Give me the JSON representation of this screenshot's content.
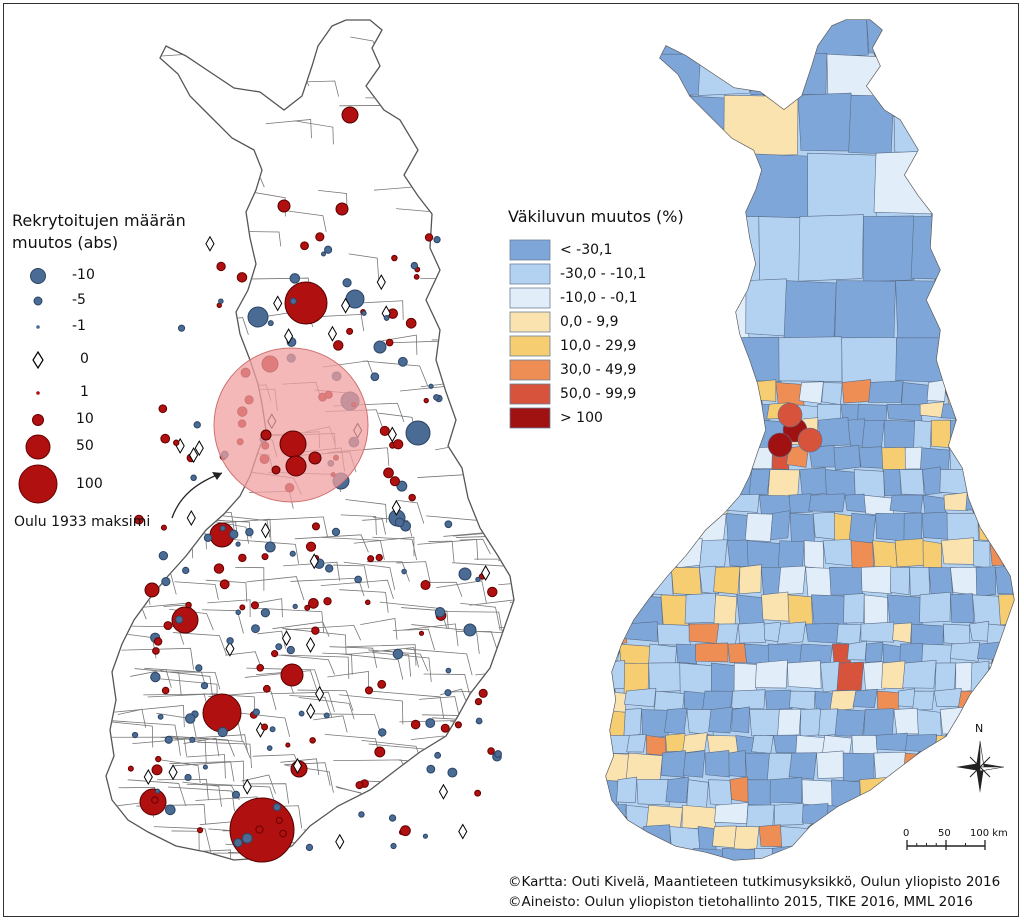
{
  "left_map": {
    "legend": {
      "title_line1": "Rekrytoitujen määrän",
      "title_line2": "muutos (abs)",
      "items": [
        {
          "label": "-10",
          "symbol": "blue-circle-large",
          "color": "#4a6b94"
        },
        {
          "label": "-5",
          "symbol": "blue-circle-medium",
          "color": "#4a6b94"
        },
        {
          "label": "-1",
          "symbol": "blue-circle-small",
          "color": "#4a6b94"
        },
        {
          "label": "0",
          "symbol": "diamond-outline",
          "color": "#000000"
        },
        {
          "label": "1",
          "symbol": "red-circle-tiny",
          "color": "#b01010"
        },
        {
          "label": "10",
          "symbol": "red-circle-small",
          "color": "#b01010"
        },
        {
          "label": "50",
          "symbol": "red-circle-medium",
          "color": "#b01010"
        },
        {
          "label": "100",
          "symbol": "red-circle-large",
          "color": "#b01010"
        }
      ]
    },
    "annotation": "Oulu 1933 maksimi",
    "annotation_color": "#f0a0a0"
  },
  "right_map": {
    "legend": {
      "title": "Väkiluvun muutos (%)",
      "classes": [
        {
          "label": "< -30,1",
          "color": "#7ea6d8"
        },
        {
          "label": "-30,0 - -10,1",
          "color": "#b3d1f0"
        },
        {
          "label": "-10,0 - -0,1",
          "color": "#e1edf9"
        },
        {
          "label": "0,0 - 9,9",
          "color": "#fbe3b0"
        },
        {
          "label": "10,0 - 29,9",
          "color": "#f7cd72"
        },
        {
          "label": "30,0 - 49,9",
          "color": "#ee8e55"
        },
        {
          "label": "50,0 - 99,9",
          "color": "#d7533b"
        },
        {
          "label": "> 100",
          "color": "#a01212"
        }
      ]
    }
  },
  "north_arrow": {
    "label": "N",
    "icon": "compass-rose-icon"
  },
  "scale_bar": {
    "ticks": [
      "0",
      "50",
      "100 km"
    ]
  },
  "credits": {
    "line1": "©Kartta: Outi Kivelä, Maantieteen tutkimusyksikkö, Oulun yliopisto 2016",
    "line2": "©Aineisto: Oulun yliopiston tietohallinto 2015, TIKE 2016, MML 2016"
  }
}
